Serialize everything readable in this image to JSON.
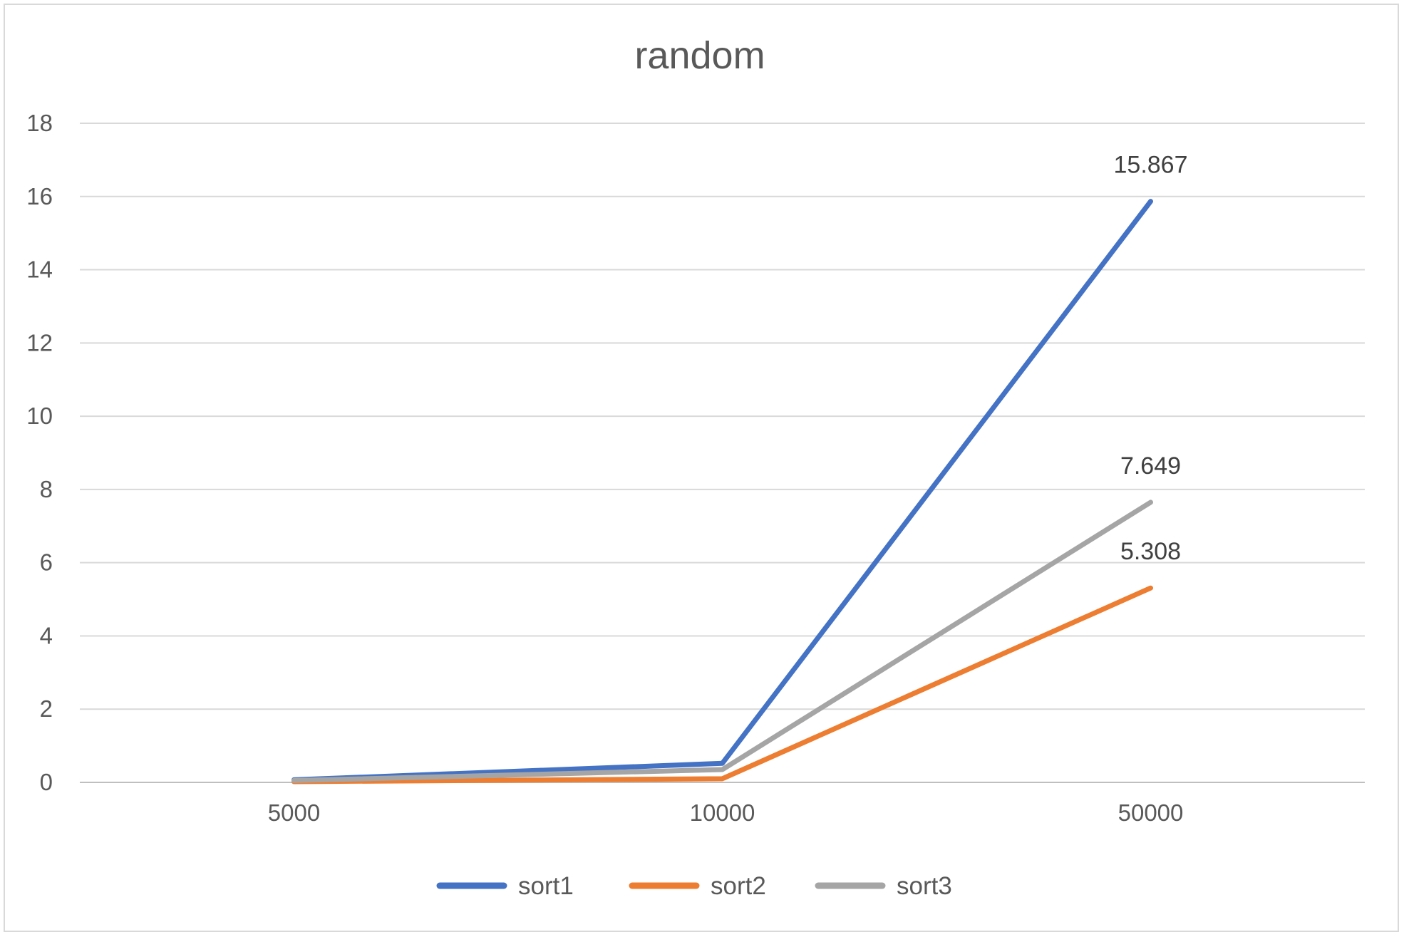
{
  "chart_data": {
    "type": "line",
    "title": "random",
    "xlabel": "",
    "ylabel": "",
    "categories": [
      "5000",
      "10000",
      "50000"
    ],
    "ylim": [
      0,
      18
    ],
    "yticks": [
      0,
      2,
      4,
      6,
      8,
      10,
      12,
      14,
      16,
      18
    ],
    "grid": true,
    "legend_position": "bottom",
    "series": [
      {
        "name": "sort1",
        "color": "#4472C4",
        "values": [
          0.07,
          0.52,
          15.867
        ],
        "labels": [
          "",
          "",
          "15.867"
        ]
      },
      {
        "name": "sort2",
        "color": "#ED7D31",
        "values": [
          0.02,
          0.1,
          5.308
        ],
        "labels": [
          "",
          "",
          "5.308"
        ]
      },
      {
        "name": "sort3",
        "color": "#A5A5A5",
        "values": [
          0.05,
          0.35,
          7.649
        ],
        "labels": [
          "",
          "",
          "7.649"
        ]
      }
    ]
  }
}
